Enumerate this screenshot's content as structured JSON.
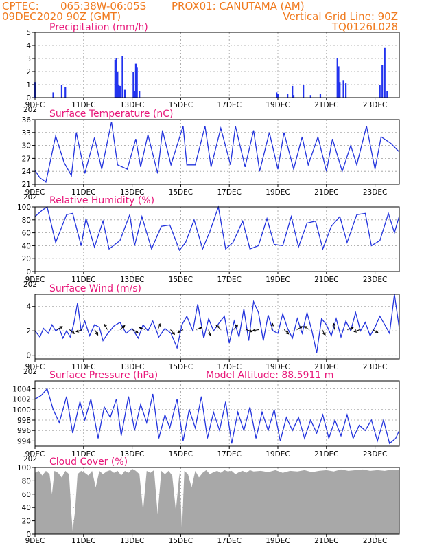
{
  "header": {
    "line1_left": "CPTEC:",
    "line1_coords": "065:38W-06:05S",
    "line1_station": "PROX01: CANUTAMA (AM)",
    "line2_left": "09DEC2020 90Z (GMT)",
    "line2_right": "Vertical Grid Line: 90Z",
    "line3_right": "TQ0126L028"
  },
  "x_axis": {
    "days": 15,
    "tick_labels": [
      "9DEC",
      "11DEC",
      "13DEC",
      "15DEC",
      "17DEC",
      "19DEC",
      "21DEC",
      "23DEC"
    ],
    "tick_days": [
      0,
      2,
      4,
      6,
      8,
      10,
      12,
      14
    ],
    "year_label": "202"
  },
  "colors": {
    "line": "#2233dd",
    "bar": "#2233ee",
    "cloud": "#a8a8a8",
    "title": "#e8187a",
    "header": "#f07a1e"
  },
  "chart_data": [
    {
      "id": "precip",
      "type": "bar",
      "title": "Precipitation (mm/h)",
      "ylim": [
        0,
        5
      ],
      "yticks": [
        0,
        1,
        2,
        3,
        4,
        5
      ],
      "x": [
        0.0,
        0.75,
        1.1,
        1.25,
        3.3,
        3.35,
        3.4,
        3.45,
        3.5,
        3.6,
        3.7,
        4.05,
        4.1,
        4.15,
        4.2,
        4.3,
        9.95,
        10.0,
        10.4,
        10.6,
        10.65,
        11.05,
        11.35,
        11.75,
        12.45,
        12.5,
        12.55,
        12.7,
        12.8,
        14.2,
        14.3,
        14.4,
        14.5
      ],
      "values": [
        1.2,
        0.4,
        1.0,
        0.8,
        2.9,
        3.0,
        2.0,
        1.0,
        0.9,
        3.2,
        0.6,
        2.0,
        0.5,
        2.6,
        2.3,
        0.5,
        0.4,
        0.3,
        0.3,
        0.9,
        0.2,
        1.0,
        0.2,
        0.3,
        3.0,
        2.4,
        1.2,
        1.3,
        1.1,
        1.0,
        2.5,
        3.8,
        0.5
      ]
    },
    {
      "id": "temp",
      "type": "line",
      "title": "Surface Temperature (nC)",
      "ylim": [
        21,
        36
      ],
      "yticks": [
        21,
        24,
        27,
        30,
        33,
        36
      ],
      "x": [
        0.0,
        0.2,
        0.45,
        0.85,
        1.2,
        1.5,
        1.7,
        2.05,
        2.45,
        2.75,
        3.15,
        3.4,
        3.8,
        4.15,
        4.35,
        4.65,
        5.05,
        5.25,
        5.6,
        6.1,
        6.25,
        6.6,
        7.0,
        7.25,
        7.65,
        8.05,
        8.25,
        8.65,
        9.0,
        9.25,
        9.65,
        10.0,
        10.25,
        10.65,
        11.0,
        11.25,
        11.65,
        12.0,
        12.25,
        12.65,
        13.0,
        13.25,
        13.65,
        14.0,
        14.25,
        14.65,
        15.0
      ],
      "values": [
        24.2,
        22.5,
        21.5,
        32.2,
        26.0,
        23.0,
        33.0,
        23.5,
        31.8,
        24.5,
        35.5,
        25.5,
        24.5,
        31.5,
        25.0,
        32.5,
        23.5,
        33.5,
        25.5,
        34.5,
        25.5,
        25.5,
        34.5,
        25.0,
        34.0,
        25.5,
        34.5,
        25.0,
        33.5,
        24.0,
        33.0,
        24.5,
        33.0,
        24.5,
        32.0,
        25.5,
        32.0,
        24.0,
        31.5,
        24.0,
        30.0,
        25.5,
        34.5,
        24.5,
        32.0,
        30.5,
        28.5
      ]
    },
    {
      "id": "rh",
      "type": "line",
      "title": "Relative Humidity (%)",
      "ylim": [
        0,
        100
      ],
      "yticks": [
        0,
        20,
        40,
        60,
        80,
        100
      ],
      "x": [
        0.0,
        0.3,
        0.5,
        0.85,
        1.3,
        1.55,
        1.9,
        2.1,
        2.45,
        2.8,
        3.05,
        3.5,
        3.9,
        4.1,
        4.4,
        4.8,
        5.2,
        5.55,
        5.95,
        6.2,
        6.55,
        6.9,
        7.2,
        7.55,
        7.85,
        8.15,
        8.55,
        8.85,
        9.2,
        9.55,
        9.85,
        10.2,
        10.55,
        10.85,
        11.2,
        11.55,
        11.85,
        12.2,
        12.55,
        12.85,
        13.25,
        13.6,
        13.85,
        14.2,
        14.55,
        14.8,
        15.0
      ],
      "values": [
        85,
        95,
        100,
        45,
        88,
        90,
        40,
        82,
        38,
        78,
        35,
        48,
        88,
        40,
        85,
        35,
        70,
        72,
        33,
        45,
        80,
        35,
        62,
        100,
        35,
        45,
        78,
        35,
        40,
        82,
        42,
        40,
        85,
        38,
        75,
        78,
        35,
        70,
        85,
        45,
        88,
        90,
        40,
        48,
        90,
        60,
        86
      ]
    },
    {
      "id": "wind",
      "type": "line",
      "title": "Surface Wind (m/s)",
      "ylim": [
        -0.3,
        5
      ],
      "yticks": [
        0,
        2,
        4
      ],
      "x": [
        0.0,
        0.2,
        0.35,
        0.55,
        0.7,
        0.85,
        1.0,
        1.15,
        1.3,
        1.45,
        1.6,
        1.75,
        1.9,
        2.05,
        2.25,
        2.45,
        2.65,
        2.8,
        3.0,
        3.25,
        3.5,
        3.75,
        4.0,
        4.25,
        4.45,
        4.65,
        4.85,
        5.1,
        5.35,
        5.6,
        5.85,
        6.05,
        6.25,
        6.5,
        6.7,
        6.95,
        7.15,
        7.35,
        7.6,
        7.8,
        8.0,
        8.2,
        8.4,
        8.6,
        8.8,
        9.0,
        9.2,
        9.4,
        9.6,
        9.8,
        10.0,
        10.2,
        10.4,
        10.6,
        10.8,
        11.0,
        11.2,
        11.4,
        11.6,
        11.8,
        12.0,
        12.2,
        12.4,
        12.6,
        12.8,
        13.0,
        13.2,
        13.4,
        13.6,
        13.8,
        14.0,
        14.2,
        14.4,
        14.6,
        14.8,
        15.0
      ],
      "values": [
        2.0,
        1.5,
        2.2,
        1.8,
        2.5,
        2.0,
        2.2,
        1.4,
        2.0,
        1.5,
        2.6,
        4.3,
        2.0,
        2.8,
        1.6,
        2.5,
        2.3,
        1.2,
        1.8,
        2.4,
        2.7,
        1.8,
        2.2,
        1.4,
        2.5,
        2.0,
        2.8,
        1.5,
        2.2,
        1.8,
        0.6,
        2.5,
        3.2,
        2.0,
        4.2,
        1.4,
        3.0,
        2.0,
        2.7,
        3.2,
        1.0,
        2.8,
        1.5,
        3.8,
        1.2,
        4.4,
        3.5,
        1.2,
        3.3,
        2.0,
        1.8,
        3.4,
        2.2,
        1.4,
        3.0,
        1.8,
        3.5,
        2.0,
        0.2,
        3.0,
        2.5,
        1.6,
        3.0,
        1.5,
        2.8,
        2.0,
        3.5,
        2.0,
        2.7,
        1.6,
        2.3,
        3.2,
        2.5,
        1.8,
        5.0,
        2.2
      ]
    },
    {
      "id": "pres",
      "type": "line",
      "title": "Surface Pressure (hPa)",
      "annotation": "Model Altitude: 88.5911 m",
      "ylim": [
        993,
        1005.5
      ],
      "yticks": [
        994,
        996,
        998,
        1000,
        1002,
        1004
      ],
      "x": [
        0.0,
        0.25,
        0.5,
        0.75,
        1.0,
        1.3,
        1.55,
        1.85,
        2.05,
        2.3,
        2.6,
        2.85,
        3.1,
        3.35,
        3.55,
        3.85,
        4.1,
        4.35,
        4.6,
        4.85,
        5.1,
        5.35,
        5.55,
        5.85,
        6.1,
        6.35,
        6.6,
        6.85,
        7.1,
        7.35,
        7.6,
        7.85,
        8.1,
        8.35,
        8.6,
        8.85,
        9.1,
        9.35,
        9.6,
        9.85,
        10.1,
        10.35,
        10.6,
        10.85,
        11.1,
        11.35,
        11.6,
        11.85,
        12.1,
        12.35,
        12.6,
        12.85,
        13.1,
        13.35,
        13.6,
        13.85,
        14.1,
        14.35,
        14.6,
        14.85,
        15.0
      ],
      "values": [
        1002,
        1002.7,
        1004,
        1000,
        997.5,
        1002.5,
        995.5,
        1001.5,
        998,
        1002,
        994.5,
        1000.5,
        998.5,
        1002,
        995,
        1002.5,
        996,
        1001,
        997.5,
        1003,
        994.5,
        999,
        996.5,
        1002,
        994,
        1000,
        996.5,
        1002.5,
        994.5,
        999.5,
        996,
        1001.5,
        993.5,
        999.5,
        996,
        1000.5,
        994.5,
        999.5,
        996,
        1000,
        994,
        998.5,
        996,
        998.5,
        994.5,
        998,
        995.5,
        999,
        994.5,
        998,
        995,
        999,
        994.5,
        997,
        996,
        998,
        994,
        998,
        993.5,
        994.5,
        996
      ]
    },
    {
      "id": "cloud",
      "type": "area",
      "title": "Cloud Cover (%)",
      "ylim": [
        0,
        100
      ],
      "yticks": [
        0,
        20,
        40,
        60,
        80,
        100
      ],
      "x": [
        0.0,
        0.15,
        0.3,
        0.45,
        0.6,
        0.7,
        0.8,
        0.95,
        1.1,
        1.25,
        1.4,
        1.5,
        1.55,
        1.65,
        1.75,
        1.9,
        2.05,
        2.2,
        2.35,
        2.5,
        2.65,
        2.8,
        2.95,
        3.1,
        3.25,
        3.4,
        3.55,
        3.7,
        3.85,
        4.0,
        4.15,
        4.3,
        4.45,
        4.6,
        4.75,
        4.9,
        5.05,
        5.2,
        5.35,
        5.5,
        5.65,
        5.8,
        5.95,
        6.05,
        6.15,
        6.3,
        6.45,
        6.6,
        6.75,
        6.9,
        7.05,
        7.2,
        7.35,
        7.5,
        7.65,
        7.8,
        7.95,
        8.1,
        8.25,
        8.4,
        8.55,
        8.7,
        8.85,
        9.0,
        9.3,
        9.6,
        9.9,
        10.2,
        10.5,
        10.8,
        11.1,
        11.4,
        11.7,
        12.0,
        12.3,
        12.6,
        12.9,
        13.2,
        13.5,
        13.8,
        14.1,
        14.4,
        14.7,
        15.0
      ],
      "values": [
        92,
        95,
        88,
        95,
        90,
        60,
        95,
        92,
        85,
        95,
        90,
        30,
        5,
        35,
        90,
        95,
        92,
        88,
        95,
        70,
        95,
        90,
        94,
        96,
        92,
        95,
        88,
        95,
        92,
        98,
        95,
        90,
        35,
        95,
        92,
        96,
        30,
        95,
        90,
        95,
        88,
        35,
        92,
        5,
        95,
        90,
        70,
        95,
        85,
        92,
        96,
        90,
        93,
        95,
        92,
        96,
        94,
        95,
        90,
        93,
        95,
        92,
        96,
        94,
        95,
        93,
        96,
        92,
        95,
        94,
        96,
        93,
        95,
        96,
        94,
        97,
        95,
        96,
        97,
        95,
        96,
        95,
        97,
        96
      ]
    }
  ]
}
